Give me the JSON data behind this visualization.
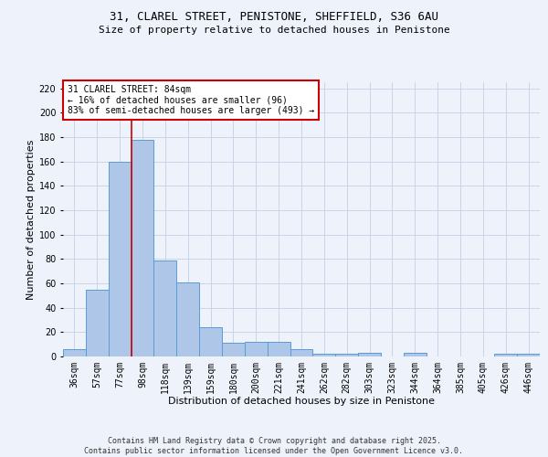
{
  "title_line1": "31, CLAREL STREET, PENISTONE, SHEFFIELD, S36 6AU",
  "title_line2": "Size of property relative to detached houses in Penistone",
  "xlabel": "Distribution of detached houses by size in Penistone",
  "ylabel": "Number of detached properties",
  "categories": [
    "36sqm",
    "57sqm",
    "77sqm",
    "98sqm",
    "118sqm",
    "139sqm",
    "159sqm",
    "180sqm",
    "200sqm",
    "221sqm",
    "241sqm",
    "262sqm",
    "282sqm",
    "303sqm",
    "323sqm",
    "344sqm",
    "364sqm",
    "385sqm",
    "405sqm",
    "426sqm",
    "446sqm"
  ],
  "values": [
    6,
    55,
    160,
    178,
    79,
    61,
    24,
    11,
    12,
    12,
    6,
    2,
    2,
    3,
    0,
    3,
    0,
    0,
    0,
    2,
    2
  ],
  "bar_color": "#aec6e8",
  "bar_edge_color": "#5b9bd5",
  "background_color": "#eef2fb",
  "grid_color": "#c8d4e8",
  "red_line_x": 2.5,
  "annotation_text": "31 CLAREL STREET: 84sqm\n← 16% of detached houses are smaller (96)\n83% of semi-detached houses are larger (493) →",
  "annotation_box_color": "#ffffff",
  "annotation_box_edge": "#cc0000",
  "footnote": "Contains HM Land Registry data © Crown copyright and database right 2025.\nContains public sector information licensed under the Open Government Licence v3.0.",
  "ylim": [
    0,
    225
  ],
  "yticks": [
    0,
    20,
    40,
    60,
    80,
    100,
    120,
    140,
    160,
    180,
    200,
    220
  ],
  "title_fontsize": 9,
  "subtitle_fontsize": 8,
  "xlabel_fontsize": 8,
  "ylabel_fontsize": 8,
  "tick_fontsize": 7,
  "annot_fontsize": 7,
  "footnote_fontsize": 6
}
